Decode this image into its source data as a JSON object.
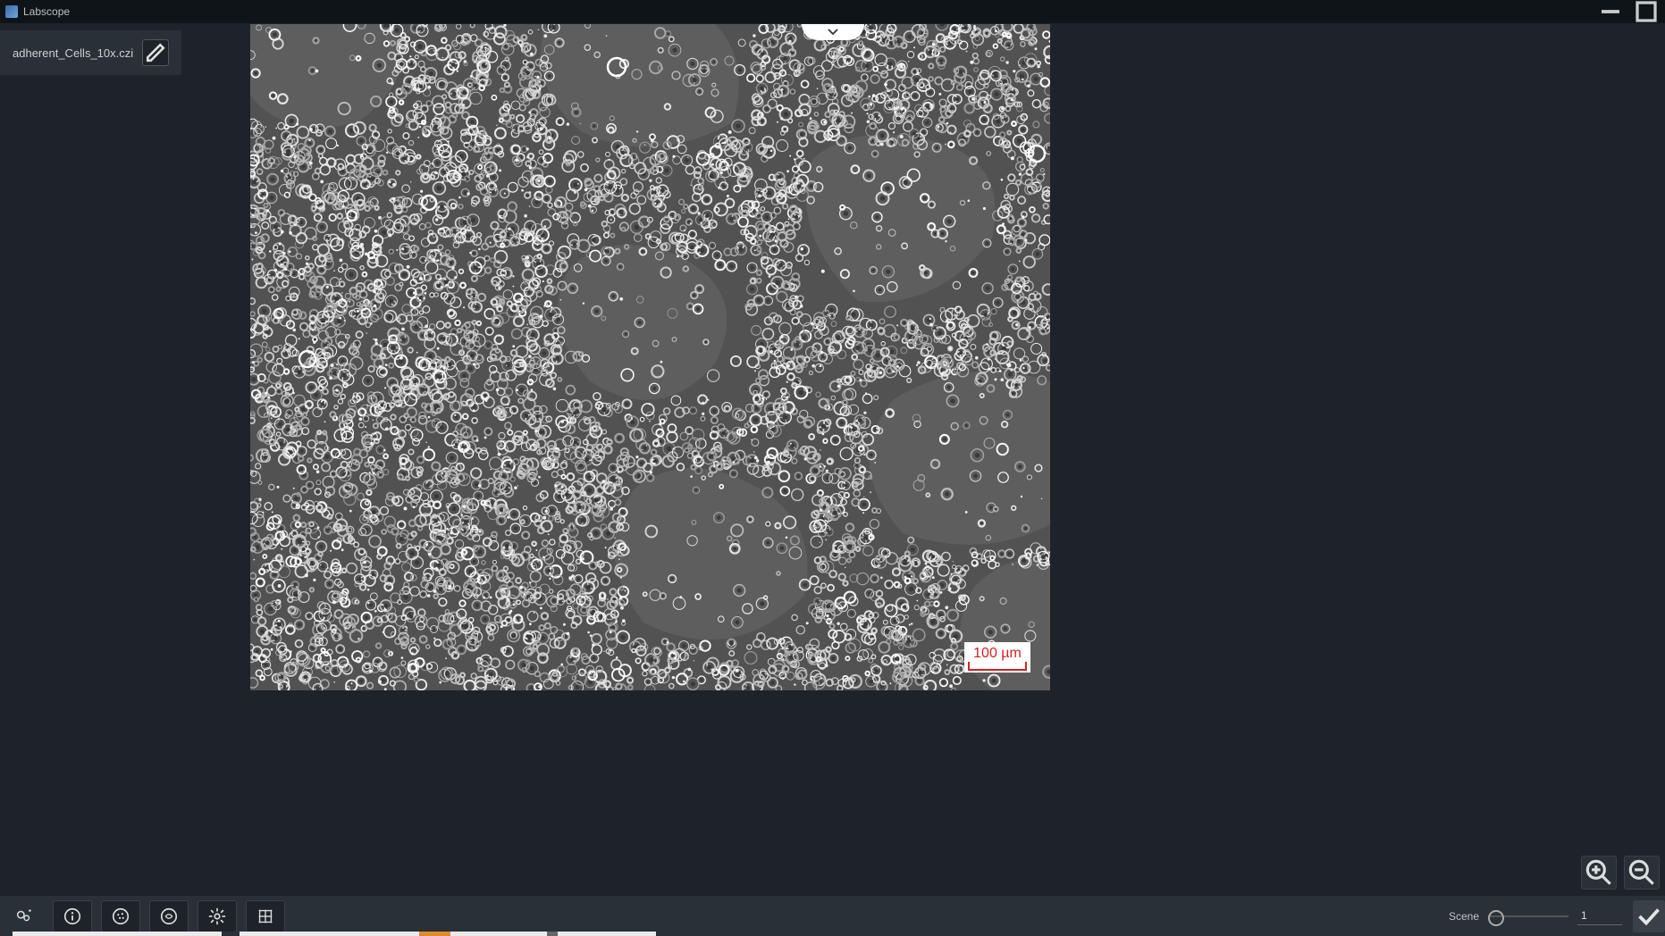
{
  "app": {
    "title": "Labscope"
  },
  "window_controls": {
    "minimize": "minimize",
    "maximize": "maximize"
  },
  "file_tab": {
    "name": "adherent_Cells_10x.czi"
  },
  "viewer": {
    "background_color": "#525252",
    "cell_light": "#c8c8c8",
    "cell_dark": "#3a3a3a",
    "scale_bar": {
      "label": "100 µm",
      "color": "#d62020",
      "bg": "#ffffff"
    }
  },
  "toolbar": {
    "items": [
      {
        "name": "ai-detect-icon"
      },
      {
        "name": "info-icon"
      },
      {
        "name": "count-colonies-icon"
      },
      {
        "name": "count-cells-icon"
      },
      {
        "name": "settings-icon"
      },
      {
        "name": "grid-icon"
      }
    ]
  },
  "scene": {
    "label": "Scene",
    "value": "1"
  },
  "zoom": {
    "in": "zoom-in",
    "out": "zoom-out"
  }
}
